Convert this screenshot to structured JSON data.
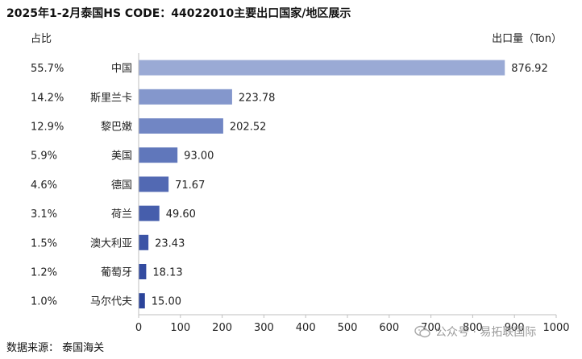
{
  "title": "2025年1-2月泰国HS CODE：44022010主要出口国家/地区展示",
  "source": "数据来源： 泰国海关",
  "watermark": "公众号 · 易拓联国际",
  "chart_data": {
    "type": "bar",
    "orientation": "horizontal",
    "share_header": "占比",
    "xlabel": "出口量（Ton）",
    "xlim": [
      0,
      1000
    ],
    "xticks": [
      0,
      100,
      200,
      300,
      400,
      500,
      600,
      700,
      800,
      900,
      1000
    ],
    "grid": false,
    "categories": [
      "中国",
      "斯里兰卡",
      "黎巴嫩",
      "美国",
      "德国",
      "荷兰",
      "澳大利亚",
      "葡萄牙",
      "马尔代夫"
    ],
    "values": [
      876.92,
      223.78,
      202.52,
      93.0,
      71.67,
      49.6,
      23.43,
      18.13,
      15.0
    ],
    "value_labels": [
      "876.92",
      "223.78",
      "202.52",
      "93.00",
      "71.67",
      "49.60",
      "23.43",
      "18.13",
      "15.00"
    ],
    "shares": [
      "55.7%",
      "14.2%",
      "12.9%",
      "5.9%",
      "4.6%",
      "3.1%",
      "1.5%",
      "1.2%",
      "1.0%"
    ],
    "bar_colors": [
      "#9aaad5",
      "#8497cc",
      "#7186c4",
      "#6077bb",
      "#5269b3",
      "#465eac",
      "#3c54a6",
      "#334ba0",
      "#2b449a"
    ]
  }
}
